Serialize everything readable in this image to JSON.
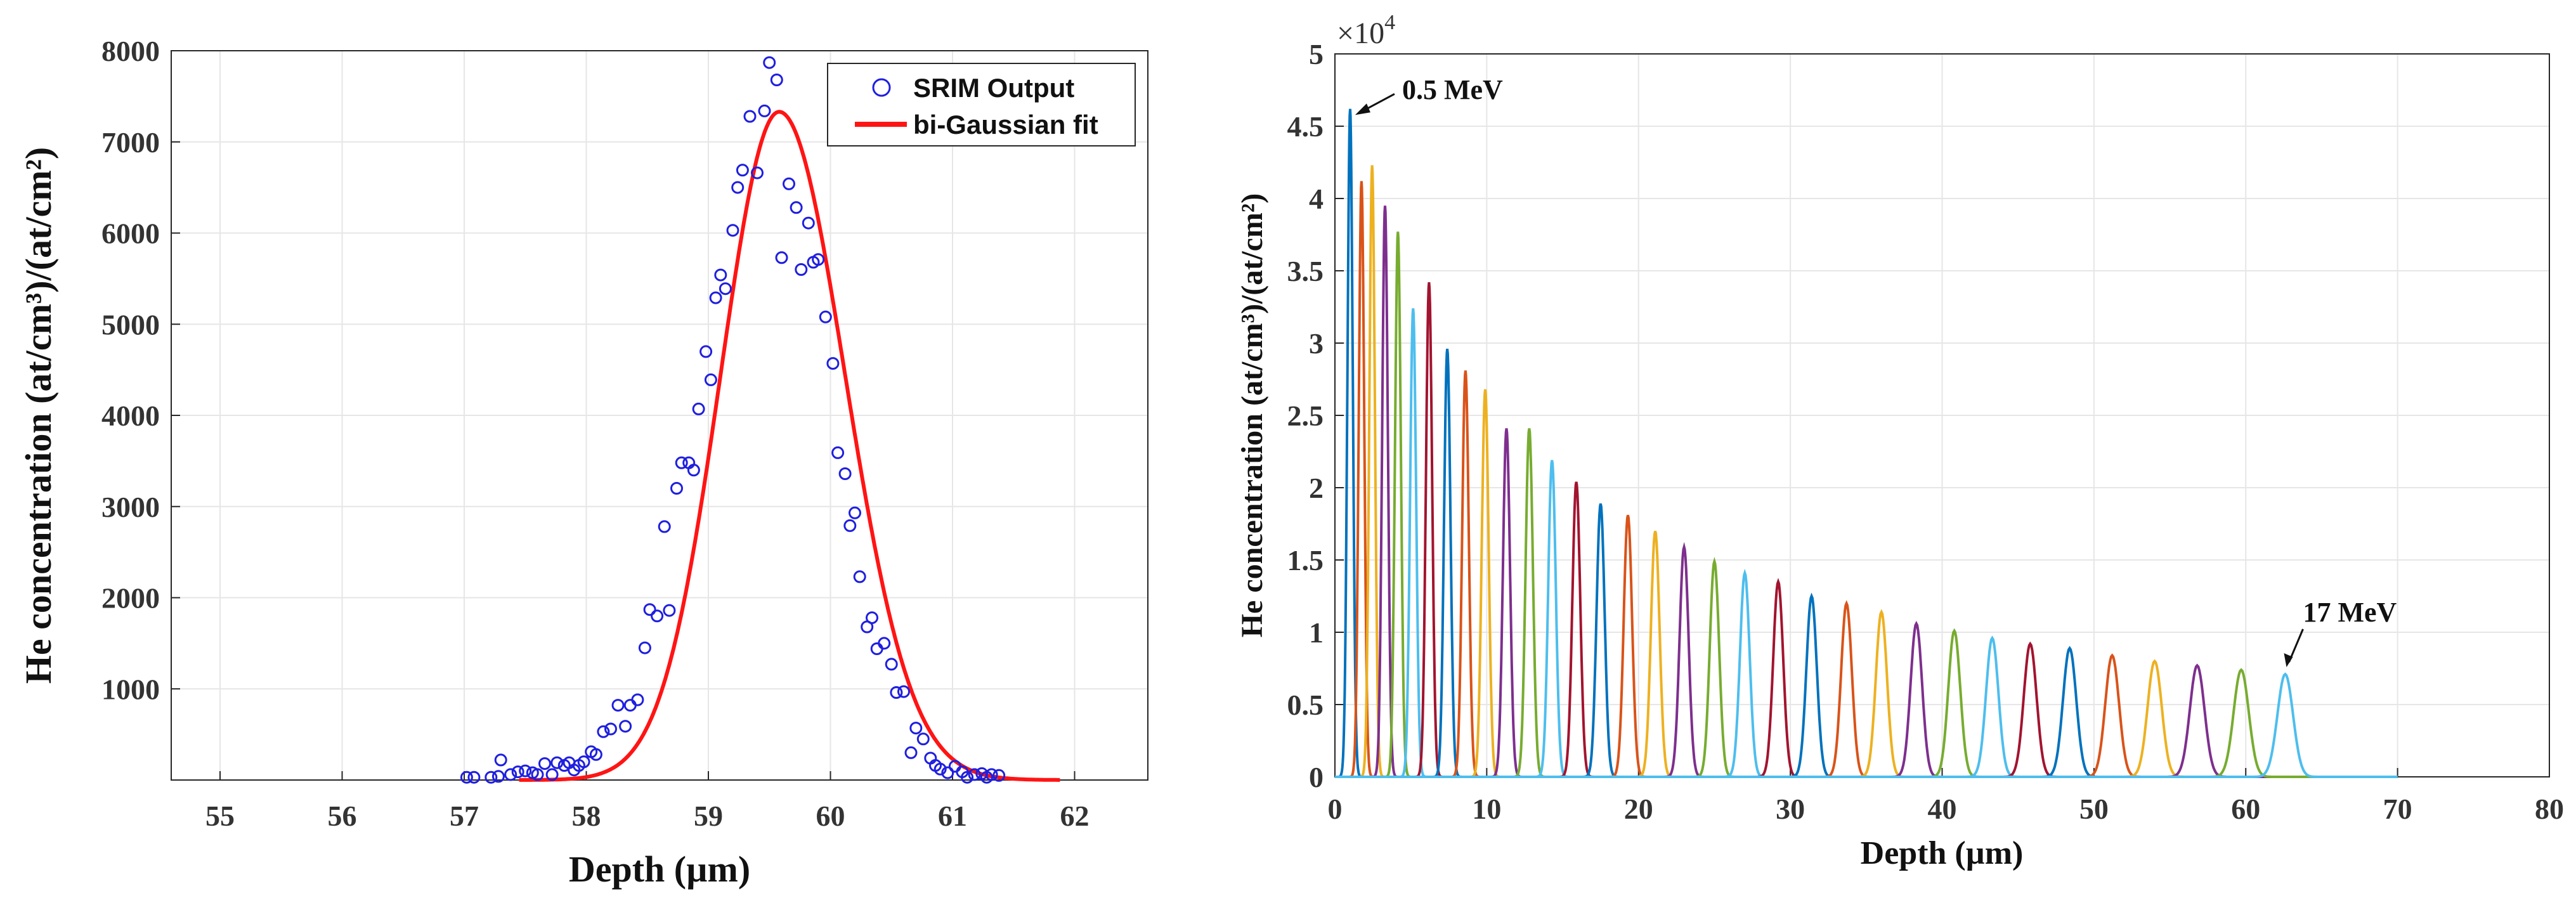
{
  "chart_data": [
    {
      "type": "scatter",
      "xlabel": "Depth (µm)",
      "ylabel": "He concentration (at/cm³)/(at/cm²)",
      "xlim": [
        54.6,
        62.6
      ],
      "ylim": [
        0,
        8000
      ],
      "xticks": [
        55,
        56,
        57,
        58,
        59,
        60,
        61,
        62
      ],
      "yticks": [
        1000,
        2000,
        3000,
        4000,
        5000,
        6000,
        7000,
        8000
      ],
      "grid": true,
      "legend": {
        "placement": "top-right",
        "entries": [
          {
            "label": "SRIM Output",
            "marker": "open-circle",
            "color": "#1f1fe0"
          },
          {
            "label": "bi-Gaussian fit",
            "marker": "line",
            "color": "#ff1414"
          }
        ]
      },
      "series": [
        {
          "name": "SRIM Output",
          "color": "#1f1fe0",
          "points": [
            [
              57.02,
              30
            ],
            [
              57.08,
              30
            ],
            [
              57.22,
              30
            ],
            [
              57.28,
              40
            ],
            [
              57.3,
              220
            ],
            [
              57.38,
              60
            ],
            [
              57.44,
              90
            ],
            [
              57.5,
              100
            ],
            [
              57.56,
              80
            ],
            [
              57.6,
              60
            ],
            [
              57.66,
              180
            ],
            [
              57.72,
              60
            ],
            [
              57.76,
              190
            ],
            [
              57.82,
              160
            ],
            [
              57.86,
              190
            ],
            [
              57.9,
              110
            ],
            [
              57.94,
              160
            ],
            [
              57.98,
              200
            ],
            [
              58.04,
              310
            ],
            [
              58.08,
              280
            ],
            [
              58.14,
              530
            ],
            [
              58.2,
              560
            ],
            [
              58.26,
              820
            ],
            [
              58.32,
              590
            ],
            [
              58.36,
              820
            ],
            [
              58.42,
              880
            ],
            [
              58.48,
              1450
            ],
            [
              58.52,
              1870
            ],
            [
              58.58,
              1800
            ],
            [
              58.64,
              2780
            ],
            [
              58.68,
              1860
            ],
            [
              58.74,
              3200
            ],
            [
              58.78,
              3480
            ],
            [
              58.84,
              3480
            ],
            [
              58.88,
              3400
            ],
            [
              58.92,
              4070
            ],
            [
              58.98,
              4700
            ],
            [
              59.02,
              4390
            ],
            [
              59.06,
              5290
            ],
            [
              59.1,
              5540
            ],
            [
              59.14,
              5390
            ],
            [
              59.2,
              6030
            ],
            [
              59.24,
              6500
            ],
            [
              59.28,
              6690
            ],
            [
              59.34,
              7280
            ],
            [
              59.4,
              6660
            ],
            [
              59.46,
              7340
            ],
            [
              59.5,
              7870
            ],
            [
              59.56,
              7680
            ],
            [
              59.6,
              5730
            ],
            [
              59.66,
              6540
            ],
            [
              59.72,
              6280
            ],
            [
              59.76,
              5600
            ],
            [
              59.82,
              6110
            ],
            [
              59.86,
              5680
            ],
            [
              59.9,
              5710
            ],
            [
              59.96,
              5080
            ],
            [
              60.02,
              4570
            ],
            [
              60.06,
              3590
            ],
            [
              60.12,
              3360
            ],
            [
              60.16,
              2790
            ],
            [
              60.2,
              2930
            ],
            [
              60.24,
              2230
            ],
            [
              60.3,
              1680
            ],
            [
              60.34,
              1780
            ],
            [
              60.38,
              1440
            ],
            [
              60.44,
              1500
            ],
            [
              60.5,
              1270
            ],
            [
              60.54,
              960
            ],
            [
              60.6,
              970
            ],
            [
              60.66,
              300
            ],
            [
              60.7,
              570
            ],
            [
              60.76,
              450
            ],
            [
              60.82,
              240
            ],
            [
              60.86,
              160
            ],
            [
              60.9,
              120
            ],
            [
              60.96,
              80
            ],
            [
              61.02,
              150
            ],
            [
              61.08,
              90
            ],
            [
              61.12,
              30
            ],
            [
              61.18,
              60
            ],
            [
              61.24,
              70
            ],
            [
              61.28,
              30
            ],
            [
              61.32,
              60
            ],
            [
              61.38,
              50
            ]
          ]
        },
        {
          "name": "bi-Gaussian fit",
          "color": "#ff1414",
          "type": "line",
          "function": "bi-gaussian",
          "peak": 7330,
          "center": 59.58,
          "sigma_left": 0.48,
          "sigma_right": 0.54,
          "x_range": [
            57.45,
            61.88
          ]
        }
      ]
    },
    {
      "type": "line",
      "xlabel": "Depth (µm)",
      "ylabel": "He concentration (at/cm³)/(at/cm²)",
      "multiplier": "×10",
      "multiplier_exp": "4",
      "xlim": [
        0,
        80
      ],
      "ylim": [
        0,
        5
      ],
      "xticks": [
        0,
        10,
        20,
        30,
        40,
        50,
        60,
        70,
        80
      ],
      "yticks": [
        0,
        0.5,
        1,
        1.5,
        2,
        2.5,
        3,
        3.5,
        4,
        4.5,
        5
      ],
      "ytick_labels": [
        "0",
        "0.5",
        "1",
        "1.5",
        "2",
        "2.5",
        "3",
        "3.5",
        "4",
        "4.5",
        "5"
      ],
      "grid": true,
      "series_colors": [
        "#0072BD",
        "#D95319",
        "#EDB120",
        "#7E2F8E",
        "#77AC30",
        "#4DBEEE",
        "#A2142F"
      ],
      "series": [
        {
          "name": "0.5 MeV",
          "center": 1.0,
          "peak": 4.62
        },
        {
          "name": "",
          "center": 1.75,
          "peak": 4.12
        },
        {
          "name": "",
          "center": 2.45,
          "peak": 4.23
        },
        {
          "name": "",
          "center": 3.3,
          "peak": 3.95
        },
        {
          "name": "",
          "center": 4.15,
          "peak": 3.77
        },
        {
          "name": "",
          "center": 5.15,
          "peak": 3.24
        },
        {
          "name": "",
          "center": 6.2,
          "peak": 3.42
        },
        {
          "name": "",
          "center": 7.4,
          "peak": 2.96
        },
        {
          "name": "",
          "center": 8.6,
          "peak": 2.81
        },
        {
          "name": "",
          "center": 9.9,
          "peak": 2.68
        },
        {
          "name": "",
          "center": 11.3,
          "peak": 2.41
        },
        {
          "name": "",
          "center": 12.8,
          "peak": 2.41
        },
        {
          "name": "",
          "center": 14.3,
          "peak": 2.19
        },
        {
          "name": "",
          "center": 15.9,
          "peak": 2.04
        },
        {
          "name": "",
          "center": 17.5,
          "peak": 1.89
        },
        {
          "name": "",
          "center": 19.3,
          "peak": 1.81
        },
        {
          "name": "",
          "center": 21.1,
          "peak": 1.7
        },
        {
          "name": "",
          "center": 23.0,
          "peak": 1.59
        },
        {
          "name": "",
          "center": 25.0,
          "peak": 1.49
        },
        {
          "name": "",
          "center": 27.0,
          "peak": 1.41
        },
        {
          "name": "",
          "center": 29.2,
          "peak": 1.35
        },
        {
          "name": "",
          "center": 31.4,
          "peak": 1.25
        },
        {
          "name": "",
          "center": 33.7,
          "peak": 1.2
        },
        {
          "name": "",
          "center": 36.0,
          "peak": 1.14
        },
        {
          "name": "",
          "center": 38.3,
          "peak": 1.06
        },
        {
          "name": "",
          "center": 40.8,
          "peak": 1.01
        },
        {
          "name": "",
          "center": 43.3,
          "peak": 0.96
        },
        {
          "name": "",
          "center": 45.8,
          "peak": 0.92
        },
        {
          "name": "",
          "center": 48.4,
          "peak": 0.89
        },
        {
          "name": "",
          "center": 51.2,
          "peak": 0.84
        },
        {
          "name": "",
          "center": 54.0,
          "peak": 0.8
        },
        {
          "name": "",
          "center": 56.8,
          "peak": 0.77
        },
        {
          "name": "",
          "center": 59.7,
          "peak": 0.74
        },
        {
          "name": "17 MeV",
          "center": 62.6,
          "peak": 0.71
        }
      ],
      "baseline_end": 70,
      "annotations": [
        {
          "text": "0.5 MeV",
          "points_to": [
            1.0,
            4.6
          ]
        },
        {
          "text": "17 MeV",
          "points_to": [
            62.6,
            0.75
          ]
        }
      ]
    }
  ]
}
